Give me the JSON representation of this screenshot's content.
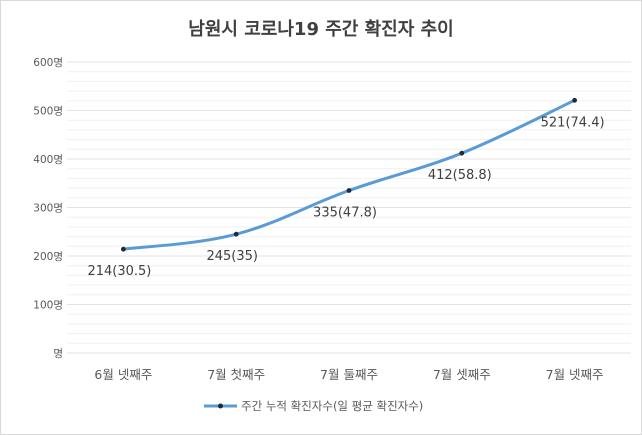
{
  "chart_data": {
    "type": "line",
    "title": "남원시 코로나19 주간 확진자 추이",
    "categories": [
      "6월 넷째주",
      "7월 첫째주",
      "7월 둘째주",
      "7월 셋째주",
      "7월 넷째주"
    ],
    "series": [
      {
        "name": "주간 누적 확진자수(일 평균 확진자수)",
        "values": [
          214,
          245,
          335,
          412,
          521
        ],
        "labels": [
          "214(30.5)",
          "245(35)",
          "335(47.8)",
          "412(58.8)",
          "521(74.4)"
        ],
        "color": "#5b9bd5",
        "marker_color": "#1f2a3a"
      }
    ],
    "yticks": [
      0,
      100,
      200,
      300,
      400,
      500,
      600
    ],
    "ytick_labels": [
      "명",
      "100명",
      "200명",
      "300명",
      "400명",
      "500명",
      "600명"
    ],
    "ylim": [
      0,
      600
    ],
    "grid": true,
    "legend": "bottom"
  }
}
